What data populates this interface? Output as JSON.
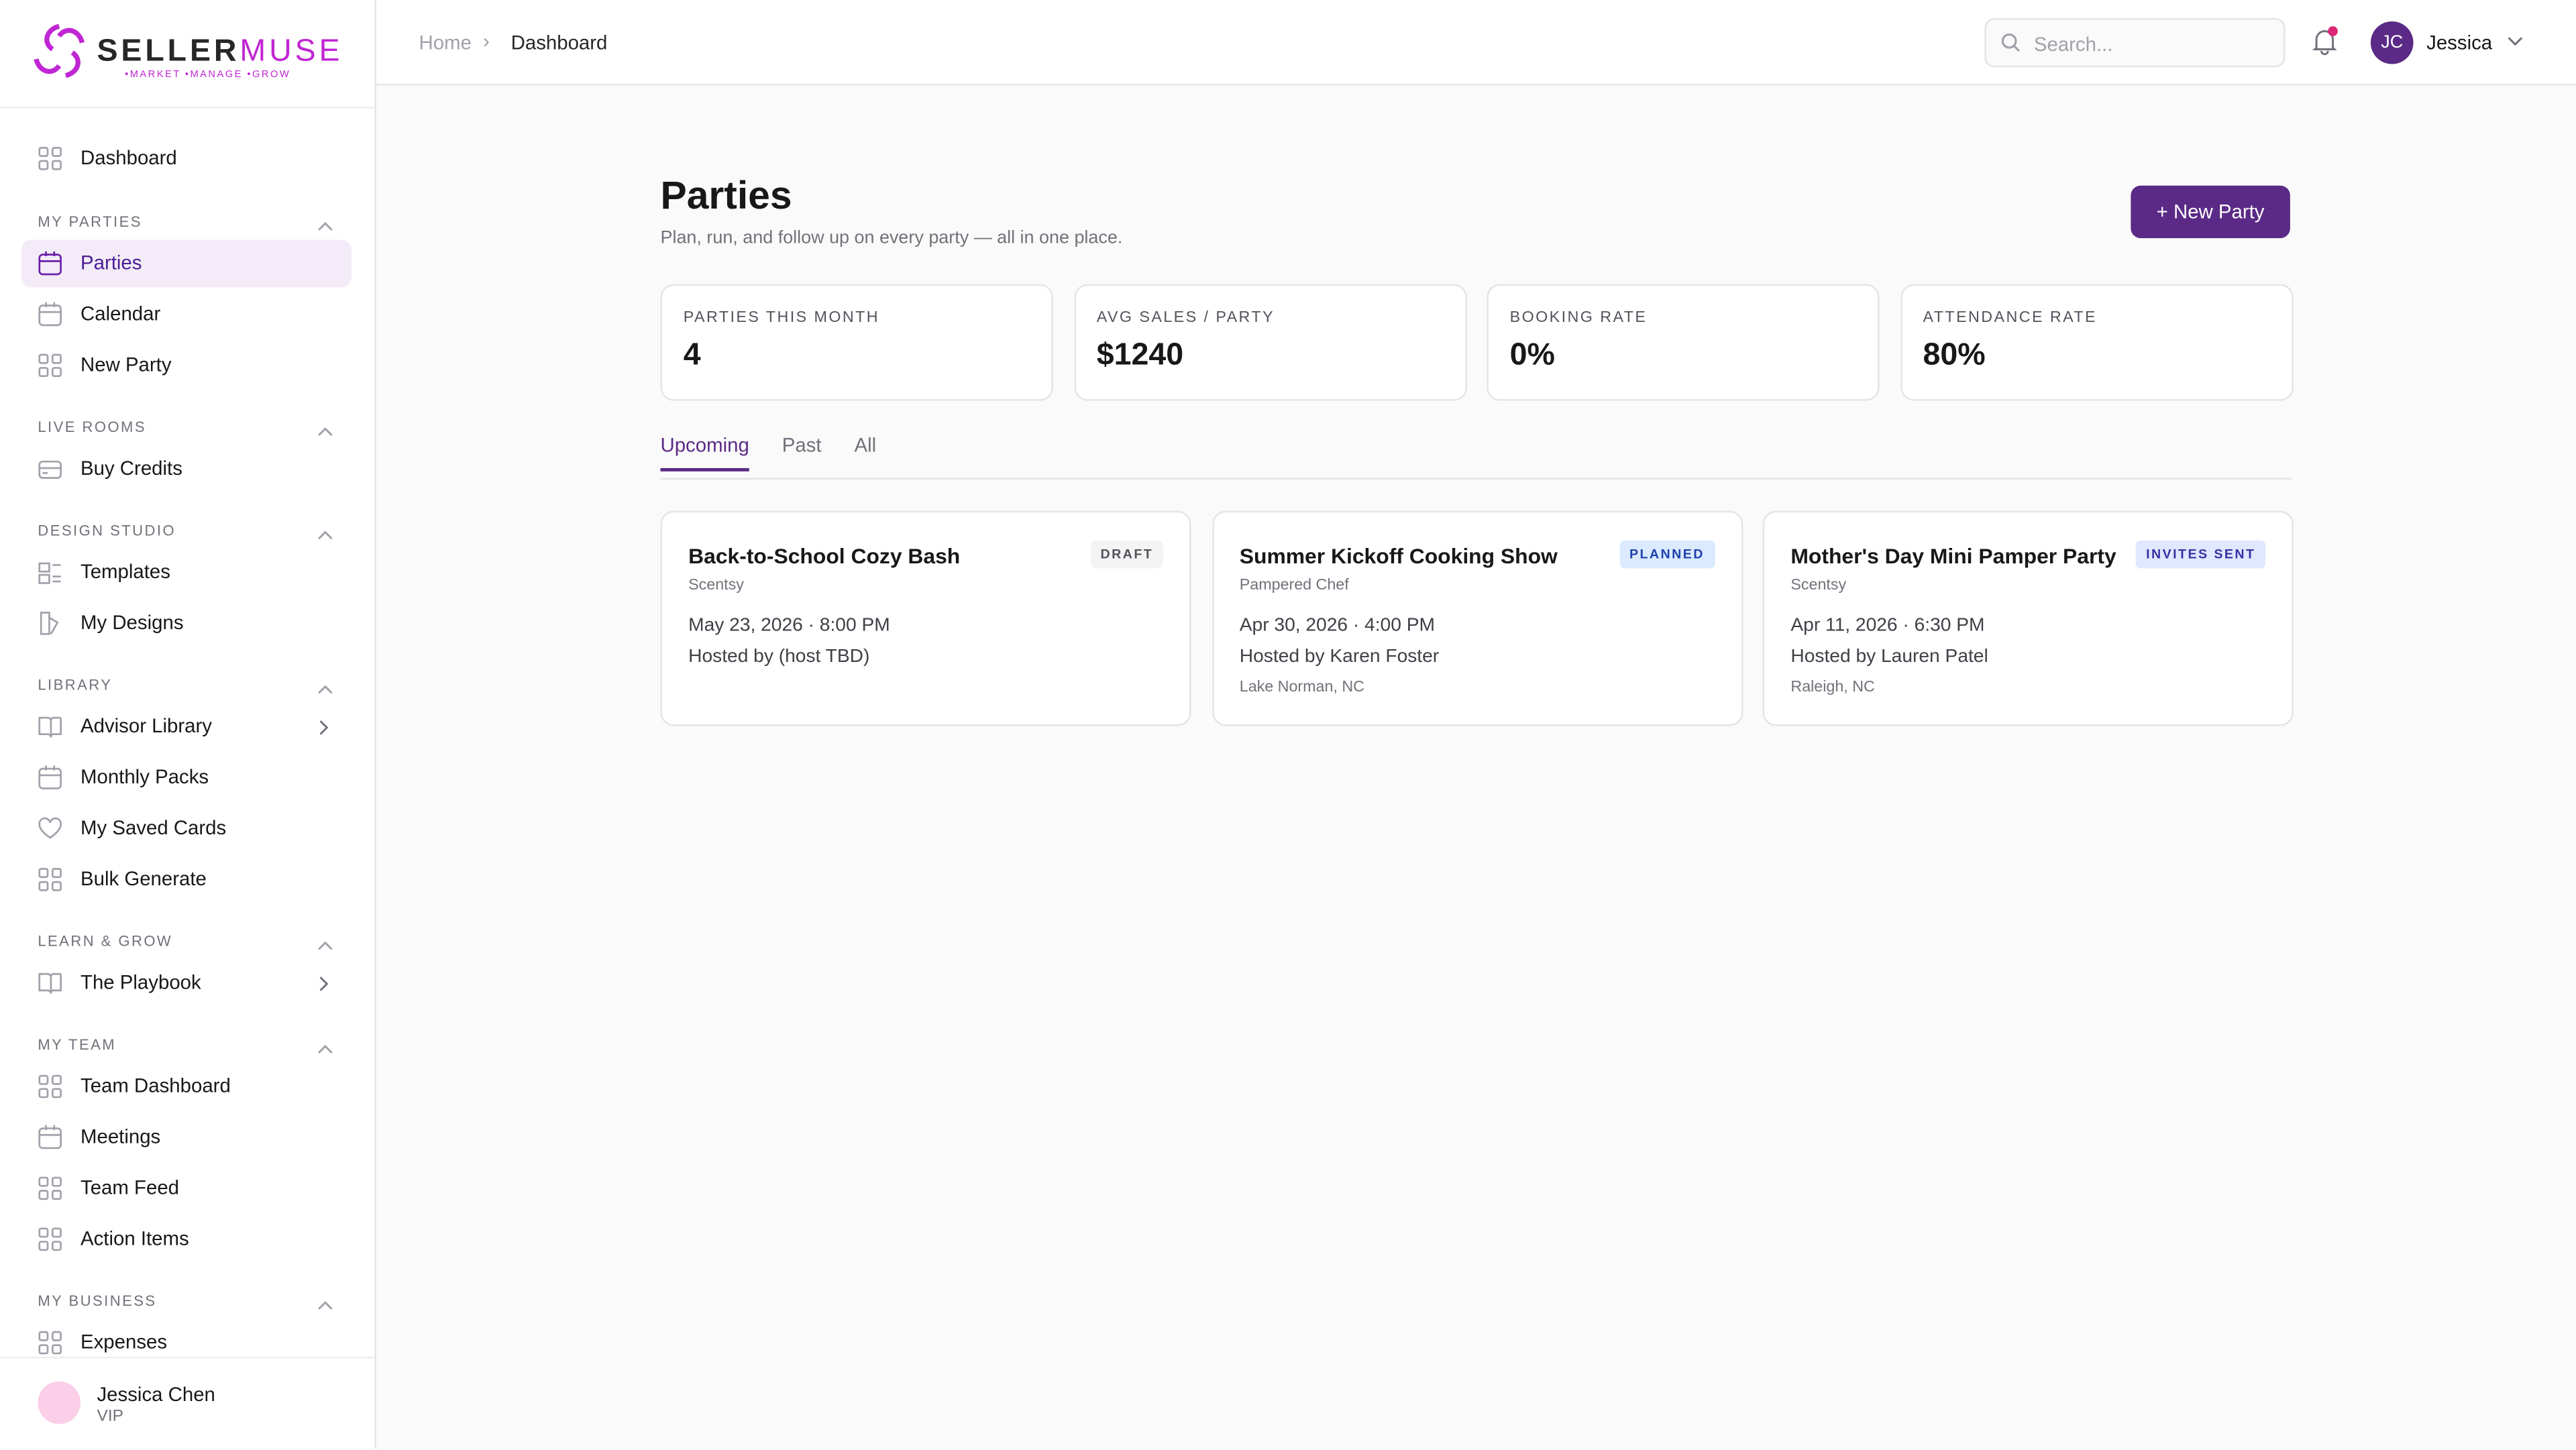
{
  "logo": {
    "brand_a": "SELLER",
    "brand_b": "MUSE",
    "tagline": "•MARKET •MANAGE •GROW"
  },
  "sidebar": {
    "top": [
      "Dashboard"
    ],
    "sections": [
      {
        "title": "MY PARTIES",
        "items": [
          "Parties",
          "Calendar",
          "New Party"
        ]
      },
      {
        "title": "LIVE ROOMS",
        "items": [
          "Buy Credits"
        ]
      },
      {
        "title": "DESIGN STUDIO",
        "items": [
          "Templates",
          "My Designs"
        ]
      },
      {
        "title": "LIBRARY",
        "items": [
          "Advisor Library",
          "Monthly Packs",
          "My Saved Cards",
          "Bulk Generate"
        ]
      },
      {
        "title": "LEARN & GROW",
        "items": [
          "The Playbook"
        ]
      },
      {
        "title": "MY TEAM",
        "items": [
          "Team Dashboard",
          "Meetings",
          "Team Feed",
          "Action Items"
        ]
      },
      {
        "title": "MY BUSINESS",
        "items": [
          "Expenses"
        ]
      }
    ],
    "user": {
      "name": "Jessica Chen",
      "tier": "VIP"
    }
  },
  "header": {
    "breadcrumb": [
      "Home",
      "Dashboard"
    ],
    "search_placeholder": "Search...",
    "avatar_initials": "JC",
    "user_name": "Jessica"
  },
  "page": {
    "title": "Parties",
    "subtitle": "Plan, run, and follow up on every party — all in one place.",
    "new_button": "+ New Party",
    "stats": [
      {
        "label": "PARTIES THIS MONTH",
        "value": "4"
      },
      {
        "label": "AVG SALES / PARTY",
        "value": "$1240"
      },
      {
        "label": "BOOKING RATE",
        "value": "0%"
      },
      {
        "label": "ATTENDANCE RATE",
        "value": "80%"
      }
    ],
    "tabs": [
      "Upcoming",
      "Past",
      "All"
    ],
    "cards": [
      {
        "title": "Back-to-School Cozy Bash",
        "brand": "Scentsy",
        "status": "DRAFT",
        "datetime": "May 23, 2026 · 8:00 PM",
        "host": "Hosted by (host TBD)"
      },
      {
        "title": "Summer Kickoff Cooking Show",
        "brand": "Pampered Chef",
        "status": "PLANNED",
        "datetime": "Apr 30, 2026 · 4:00 PM",
        "host": "Hosted by Karen Foster",
        "location": "Lake Norman, NC"
      },
      {
        "title": "Mother's Day Mini Pamper Party",
        "brand": "Scentsy",
        "status": "INVITES SENT",
        "datetime": "Apr 11, 2026 · 6:30 PM",
        "host": "Hosted by Lauren Patel",
        "location": "Raleigh, NC"
      }
    ]
  }
}
